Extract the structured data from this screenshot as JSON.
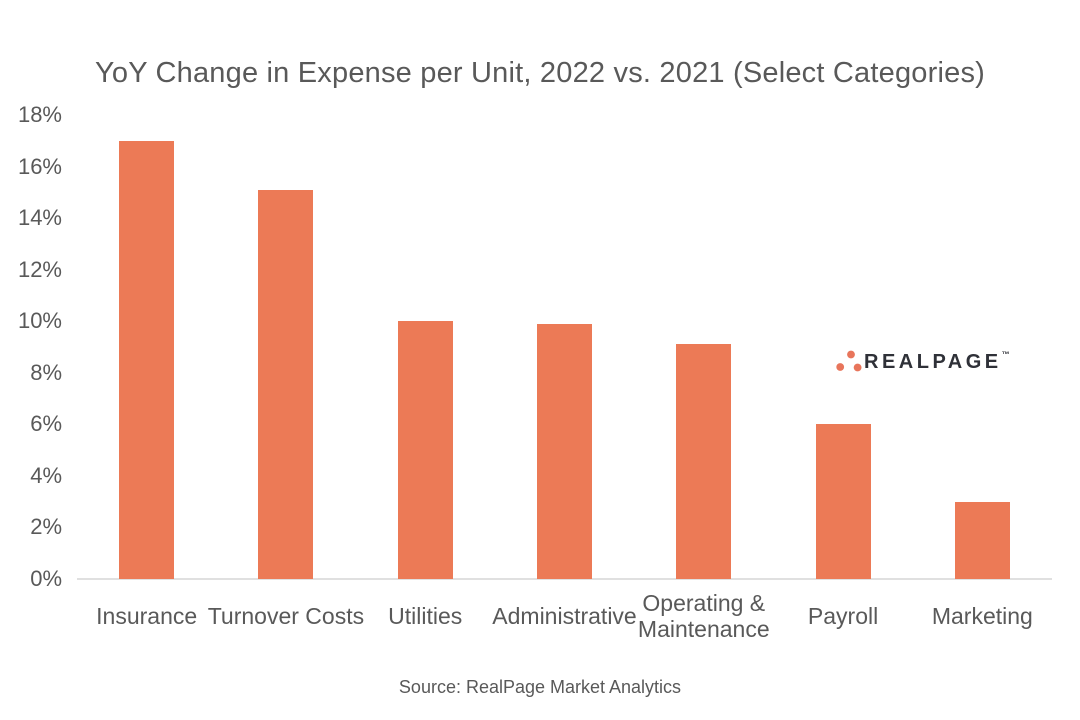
{
  "page": {
    "title": "YoY Change in Expense per Unit, 2022 vs. 2021 (Select Categories)",
    "source": "Source: RealPage Market Analytics"
  },
  "logo": {
    "text": "REALPAGE",
    "trademark": "™",
    "mark": "three-dots-triangle",
    "dot_color": "#E8755B",
    "text_color": "#2F3138"
  },
  "colors": {
    "bar": "#EC7A56",
    "axis_line": "#E0E0E0",
    "text": "#595959",
    "background": "#FFFFFF"
  },
  "chart_data": {
    "type": "bar",
    "title": "YoY Change in Expense per Unit, 2022 vs. 2021 (Select Categories)",
    "categories": [
      "Insurance",
      "Turnover Costs",
      "Utilities",
      "Administrative",
      "Operating & Maintenance",
      "Payroll",
      "Marketing"
    ],
    "values": [
      17.0,
      15.1,
      10.0,
      9.9,
      9.1,
      6.0,
      3.0
    ],
    "unit": "%",
    "xlabel": "",
    "ylabel": "",
    "ylim": [
      0,
      18
    ],
    "ytick_step": 2,
    "ytick_labels": [
      "0%",
      "2%",
      "4%",
      "6%",
      "8%",
      "10%",
      "12%",
      "14%",
      "16%",
      "18%"
    ],
    "grid": false,
    "legend": false,
    "bar_color": "#EC7A56"
  }
}
